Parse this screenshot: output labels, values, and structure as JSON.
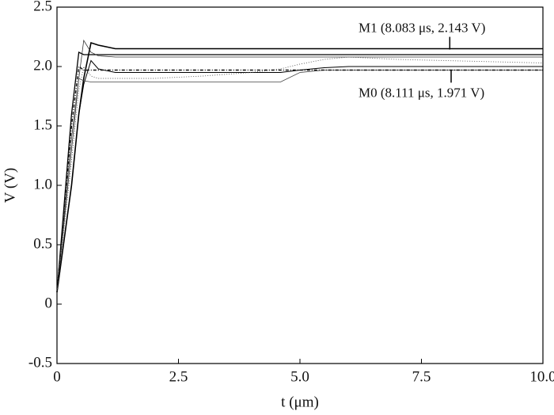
{
  "chart_data": {
    "type": "line",
    "xlabel": "t (μm)",
    "ylabel": "V (V)",
    "x": [
      0,
      0.3,
      0.45,
      0.55,
      0.7,
      0.85,
      1.2,
      2,
      3,
      4,
      4.6,
      5,
      5.5,
      6,
      7,
      8,
      9,
      10
    ],
    "series": [
      {
        "color": "#000000",
        "width": 1.6,
        "values": [
          0.1,
          1.0,
          1.6,
          1.9,
          2.2,
          2.18,
          2.15,
          2.15,
          2.15,
          2.15,
          2.15,
          2.15,
          2.15,
          2.15,
          2.15,
          2.15,
          2.15,
          2.15
        ]
      },
      {
        "color": "#000000",
        "width": 1.3,
        "values": [
          0.1,
          1.6,
          2.12,
          2.1,
          2.1,
          2.1,
          2.1,
          2.1,
          2.1,
          2.1,
          2.1,
          2.1,
          2.1,
          2.1,
          2.1,
          2.1,
          2.1,
          2.1
        ]
      },
      {
        "color": "#333333",
        "width": 0.8,
        "values": [
          0.1,
          1.3,
          1.9,
          2.22,
          2.12,
          2.09,
          2.08,
          2.08,
          2.08,
          2.08,
          2.08,
          2.08,
          2.08,
          2.08,
          2.08,
          2.08,
          2.08,
          2.08
        ]
      },
      {
        "color": "#000000",
        "width": 1.0,
        "values": [
          0.1,
          1.0,
          1.6,
          1.85,
          2.05,
          1.98,
          1.95,
          1.95,
          1.95,
          1.95,
          1.95,
          1.97,
          1.99,
          2.0,
          2.0,
          2.0,
          2.0,
          2.0
        ]
      },
      {
        "color": "#444444",
        "width": 0.8,
        "values": [
          0.1,
          1.4,
          1.9,
          1.88,
          1.87,
          1.87,
          1.87,
          1.87,
          1.87,
          1.87,
          1.87,
          1.95,
          1.97,
          1.97,
          1.97,
          1.97,
          1.97,
          1.97
        ]
      },
      {
        "color": "#555555",
        "width": 0.9,
        "dash": "1 2",
        "values": [
          0.1,
          1.2,
          1.8,
          2.0,
          1.92,
          1.9,
          1.9,
          1.9,
          1.92,
          1.95,
          1.98,
          2.02,
          2.06,
          2.08,
          2.06,
          2.05,
          2.04,
          2.03
        ]
      },
      {
        "color": "#111111",
        "width": 1.4,
        "dash": "4 2 1 2",
        "values": [
          0.1,
          1.5,
          2.0,
          1.97,
          1.97,
          1.97,
          1.97,
          1.97,
          1.97,
          1.97,
          1.97,
          1.97,
          1.97,
          1.97,
          1.97,
          1.97,
          1.97,
          1.97
        ]
      }
    ],
    "annotations": [
      {
        "label": "M1 (8.083 μs, 2.143 V)",
        "x": 8.083,
        "y": 2.143
      },
      {
        "label": "M0 (8.111 μs, 1.971 V)",
        "x": 8.111,
        "y": 1.971
      }
    ],
    "xlim": [
      0,
      10
    ],
    "xticks": [
      0,
      2.5,
      {
        "value": 5,
        "label": "5.0"
      },
      7.5,
      {
        "value": 10,
        "label": "10.0"
      }
    ],
    "ylim": [
      -0.5,
      2.5
    ],
    "yticks": [
      -0.5,
      0,
      0.5,
      {
        "value": 1,
        "label": "1.0"
      },
      1.5,
      {
        "value": 2,
        "label": "2.0"
      },
      2.5
    ],
    "grid": false
  }
}
